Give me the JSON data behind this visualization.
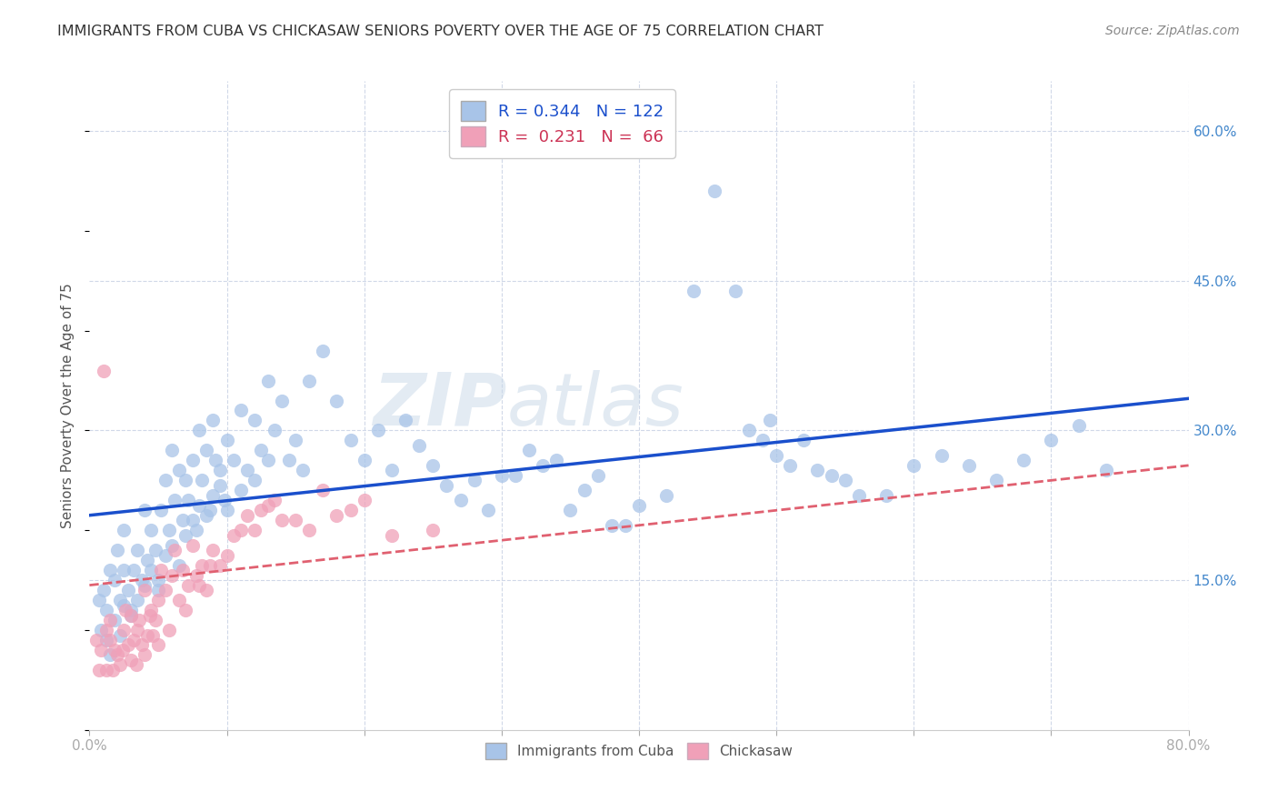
{
  "title": "IMMIGRANTS FROM CUBA VS CHICKASAW SENIORS POVERTY OVER THE AGE OF 75 CORRELATION CHART",
  "source": "Source: ZipAtlas.com",
  "ylabel": "Seniors Poverty Over the Age of 75",
  "xlim": [
    0,
    0.8
  ],
  "ylim": [
    0,
    0.65
  ],
  "xtick_positions": [
    0.0,
    0.1,
    0.2,
    0.3,
    0.4,
    0.5,
    0.6,
    0.7,
    0.8
  ],
  "xticklabels": [
    "0.0%",
    "",
    "",
    "",
    "",
    "",
    "",
    "",
    "80.0%"
  ],
  "ytick_right_labels": [
    "15.0%",
    "30.0%",
    "45.0%",
    "60.0%"
  ],
  "ytick_right_values": [
    0.15,
    0.3,
    0.45,
    0.6
  ],
  "blue_R": 0.344,
  "blue_N": 122,
  "pink_R": 0.231,
  "pink_N": 66,
  "blue_color": "#a8c4e8",
  "pink_color": "#f0a0b8",
  "blue_line_color": "#1a4fcc",
  "pink_line_color": "#e06070",
  "background_color": "#ffffff",
  "grid_color": "#d0d8e8",
  "watermark_zip": "ZIP",
  "watermark_atlas": "atlas",
  "blue_line_start_y": 0.215,
  "blue_line_end_y": 0.332,
  "pink_line_start_y": 0.145,
  "pink_line_end_y": 0.265,
  "blue_scatter_x": [
    0.007,
    0.01,
    0.012,
    0.015,
    0.018,
    0.02,
    0.022,
    0.025,
    0.025,
    0.028,
    0.03,
    0.032,
    0.035,
    0.038,
    0.04,
    0.042,
    0.045,
    0.048,
    0.05,
    0.052,
    0.055,
    0.058,
    0.06,
    0.062,
    0.065,
    0.068,
    0.07,
    0.072,
    0.075,
    0.078,
    0.08,
    0.082,
    0.085,
    0.088,
    0.09,
    0.092,
    0.095,
    0.098,
    0.1,
    0.105,
    0.11,
    0.115,
    0.12,
    0.125,
    0.13,
    0.135,
    0.14,
    0.145,
    0.15,
    0.155,
    0.008,
    0.012,
    0.015,
    0.018,
    0.022,
    0.025,
    0.03,
    0.035,
    0.04,
    0.045,
    0.05,
    0.055,
    0.06,
    0.065,
    0.07,
    0.075,
    0.08,
    0.085,
    0.09,
    0.095,
    0.1,
    0.11,
    0.12,
    0.13,
    0.16,
    0.17,
    0.18,
    0.19,
    0.2,
    0.21,
    0.22,
    0.23,
    0.24,
    0.25,
    0.26,
    0.27,
    0.28,
    0.29,
    0.3,
    0.31,
    0.32,
    0.33,
    0.34,
    0.35,
    0.36,
    0.37,
    0.38,
    0.39,
    0.4,
    0.42,
    0.44,
    0.455,
    0.47,
    0.48,
    0.49,
    0.495,
    0.5,
    0.51,
    0.52,
    0.53,
    0.54,
    0.55,
    0.56,
    0.58,
    0.6,
    0.62,
    0.64,
    0.66,
    0.68,
    0.7,
    0.72,
    0.74
  ],
  "blue_scatter_y": [
    0.13,
    0.14,
    0.12,
    0.16,
    0.15,
    0.18,
    0.13,
    0.16,
    0.2,
    0.14,
    0.12,
    0.16,
    0.18,
    0.15,
    0.22,
    0.17,
    0.2,
    0.18,
    0.15,
    0.22,
    0.25,
    0.2,
    0.28,
    0.23,
    0.26,
    0.21,
    0.25,
    0.23,
    0.27,
    0.2,
    0.3,
    0.25,
    0.28,
    0.22,
    0.31,
    0.27,
    0.26,
    0.23,
    0.29,
    0.27,
    0.32,
    0.26,
    0.31,
    0.28,
    0.35,
    0.3,
    0.33,
    0.27,
    0.29,
    0.26,
    0.1,
    0.09,
    0.075,
    0.11,
    0.095,
    0.125,
    0.115,
    0.13,
    0.145,
    0.16,
    0.14,
    0.175,
    0.185,
    0.165,
    0.195,
    0.21,
    0.225,
    0.215,
    0.235,
    0.245,
    0.22,
    0.24,
    0.25,
    0.27,
    0.35,
    0.38,
    0.33,
    0.29,
    0.27,
    0.3,
    0.26,
    0.31,
    0.285,
    0.265,
    0.245,
    0.23,
    0.25,
    0.22,
    0.255,
    0.255,
    0.28,
    0.265,
    0.27,
    0.22,
    0.24,
    0.255,
    0.205,
    0.205,
    0.225,
    0.235,
    0.44,
    0.54,
    0.44,
    0.3,
    0.29,
    0.31,
    0.275,
    0.265,
    0.29,
    0.26,
    0.255,
    0.25,
    0.235,
    0.235,
    0.265,
    0.275,
    0.265,
    0.25,
    0.27,
    0.29,
    0.305,
    0.26
  ],
  "pink_scatter_x": [
    0.005,
    0.007,
    0.008,
    0.01,
    0.012,
    0.012,
    0.015,
    0.015,
    0.017,
    0.018,
    0.02,
    0.022,
    0.024,
    0.025,
    0.026,
    0.028,
    0.03,
    0.03,
    0.032,
    0.034,
    0.035,
    0.036,
    0.038,
    0.04,
    0.04,
    0.042,
    0.044,
    0.045,
    0.046,
    0.048,
    0.05,
    0.05,
    0.052,
    0.055,
    0.058,
    0.06,
    0.062,
    0.065,
    0.068,
    0.07,
    0.072,
    0.075,
    0.078,
    0.08,
    0.082,
    0.085,
    0.088,
    0.09,
    0.095,
    0.1,
    0.105,
    0.11,
    0.115,
    0.12,
    0.125,
    0.13,
    0.135,
    0.14,
    0.15,
    0.16,
    0.17,
    0.18,
    0.19,
    0.2,
    0.22,
    0.25
  ],
  "pink_scatter_y": [
    0.09,
    0.06,
    0.08,
    0.36,
    0.06,
    0.1,
    0.11,
    0.09,
    0.06,
    0.08,
    0.075,
    0.065,
    0.08,
    0.1,
    0.12,
    0.085,
    0.07,
    0.115,
    0.09,
    0.065,
    0.1,
    0.11,
    0.085,
    0.14,
    0.075,
    0.095,
    0.115,
    0.12,
    0.095,
    0.11,
    0.085,
    0.13,
    0.16,
    0.14,
    0.1,
    0.155,
    0.18,
    0.13,
    0.16,
    0.12,
    0.145,
    0.185,
    0.155,
    0.145,
    0.165,
    0.14,
    0.165,
    0.18,
    0.165,
    0.175,
    0.195,
    0.2,
    0.215,
    0.2,
    0.22,
    0.225,
    0.23,
    0.21,
    0.21,
    0.2,
    0.24,
    0.215,
    0.22,
    0.23,
    0.195,
    0.2
  ]
}
